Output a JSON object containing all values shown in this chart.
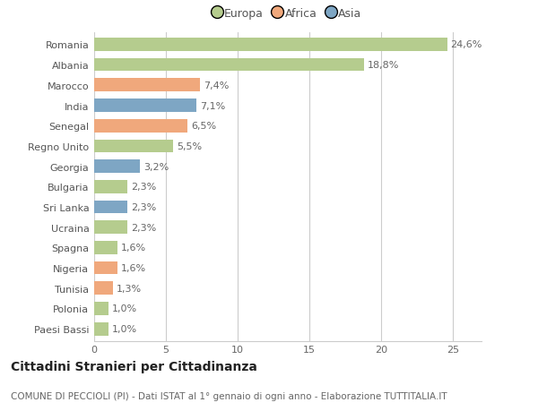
{
  "categories": [
    "Romania",
    "Albania",
    "Marocco",
    "India",
    "Senegal",
    "Regno Unito",
    "Georgia",
    "Bulgaria",
    "Sri Lanka",
    "Ucraina",
    "Spagna",
    "Nigeria",
    "Tunisia",
    "Polonia",
    "Paesi Bassi"
  ],
  "values": [
    24.6,
    18.8,
    7.4,
    7.1,
    6.5,
    5.5,
    3.2,
    2.3,
    2.3,
    2.3,
    1.6,
    1.6,
    1.3,
    1.0,
    1.0
  ],
  "labels": [
    "24,6%",
    "18,8%",
    "7,4%",
    "7,1%",
    "6,5%",
    "5,5%",
    "3,2%",
    "2,3%",
    "2,3%",
    "2,3%",
    "1,6%",
    "1,6%",
    "1,3%",
    "1,0%",
    "1,0%"
  ],
  "continents": [
    "Europa",
    "Europa",
    "Africa",
    "Asia",
    "Africa",
    "Europa",
    "Asia",
    "Europa",
    "Asia",
    "Europa",
    "Europa",
    "Africa",
    "Africa",
    "Europa",
    "Europa"
  ],
  "continent_colors": {
    "Europa": "#b5cc8e",
    "Africa": "#f0a87c",
    "Asia": "#7ea6c4"
  },
  "legend_order": [
    "Europa",
    "Africa",
    "Asia"
  ],
  "legend_colors": [
    "#b5cc8e",
    "#f0a87c",
    "#7ea6c4"
  ],
  "title": "Cittadini Stranieri per Cittadinanza",
  "subtitle": "COMUNE DI PECCIOLI (PI) - Dati ISTAT al 1° gennaio di ogni anno - Elaborazione TUTTITALIA.IT",
  "xlim": [
    0,
    27
  ],
  "xticks": [
    0,
    5,
    10,
    15,
    20,
    25
  ],
  "background_color": "#ffffff",
  "grid_color": "#cccccc",
  "bar_height": 0.65,
  "label_fontsize": 8.0,
  "tick_fontsize": 8.0,
  "title_fontsize": 10,
  "subtitle_fontsize": 7.5
}
